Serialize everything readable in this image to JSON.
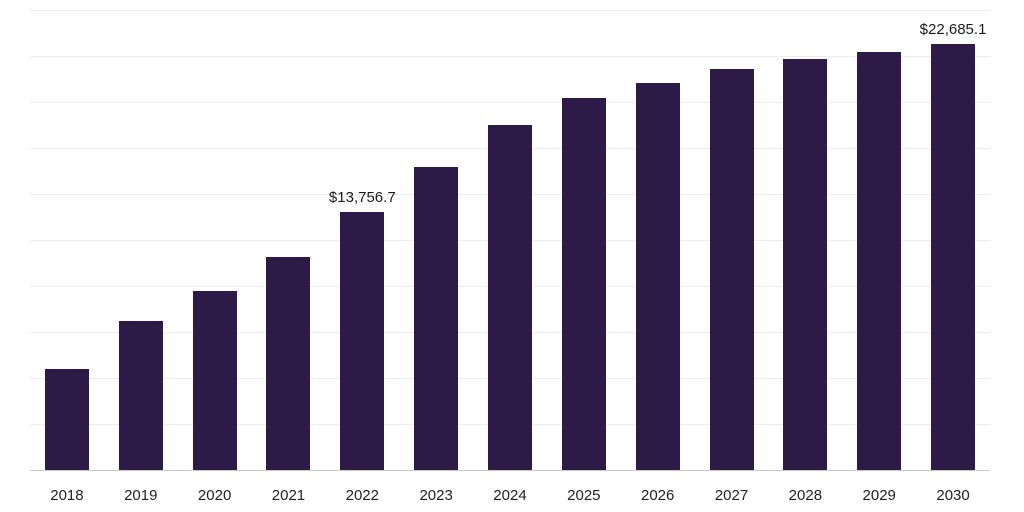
{
  "chart_data": {
    "type": "bar",
    "title": "",
    "xlabel": "",
    "ylabel": "",
    "ylim": [
      0,
      24500
    ],
    "gridline_divisions": 10,
    "grid": true,
    "legend_position": "none",
    "bar_color": "#2e1a47",
    "categories": [
      "2018",
      "2019",
      "2020",
      "2021",
      "2022",
      "2023",
      "2024",
      "2025",
      "2026",
      "2027",
      "2028",
      "2029",
      "2030"
    ],
    "values": [
      5370,
      7960,
      9510,
      11370,
      13756.7,
      16150,
      18380,
      19810,
      20610,
      21350,
      21890,
      22260,
      22685.1
    ],
    "data_labels": [
      {
        "index": 4,
        "text": "$13,756.7"
      },
      {
        "index": 12,
        "text": "$22,685.1"
      }
    ]
  }
}
